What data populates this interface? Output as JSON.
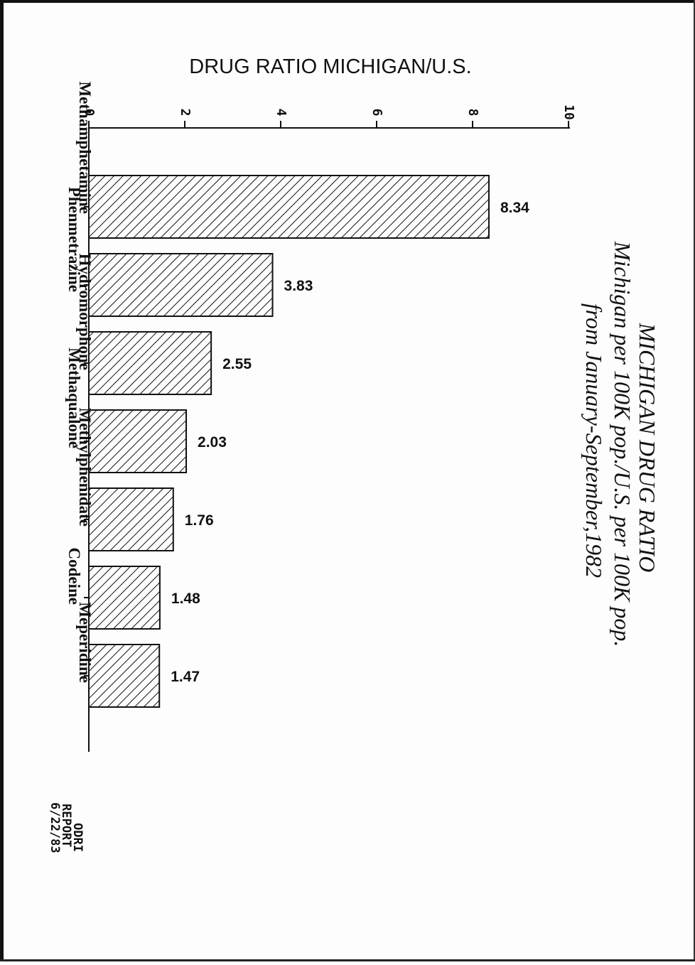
{
  "chart_data": {
    "type": "bar",
    "orientation": "horizontal",
    "title_lines": [
      "MICHIGAN DRUG RATIO",
      "Michigan per 100K pop./U.S. per 100K pop.",
      "from January-September,1982"
    ],
    "xlabel": "DRUG RATIO MICHIGAN/U.S.",
    "xlim": [
      0,
      10
    ],
    "xticks": [
      "0",
      "2",
      "4",
      "6",
      "8",
      "10"
    ],
    "categories": [
      "Methamphetamine",
      "Phenmetrazine",
      "Hydromorphone",
      "Methaqualone",
      "Methylphenidate",
      "Codeine",
      "Meperidine"
    ],
    "values": [
      8.34,
      3.83,
      2.55,
      2.03,
      1.76,
      1.48,
      1.47
    ],
    "data_labels": [
      "8.34",
      "3.83",
      "2.55",
      "2.03",
      "1.76",
      "1.48",
      "1.47"
    ],
    "grid": false,
    "bar_fill": "diagonal-hatch"
  },
  "footer": {
    "lines": [
      "ODRI",
      "REPORT",
      "6/22/83"
    ]
  },
  "colors": {
    "ink": "#111111",
    "paper": "#fdfdfd"
  }
}
